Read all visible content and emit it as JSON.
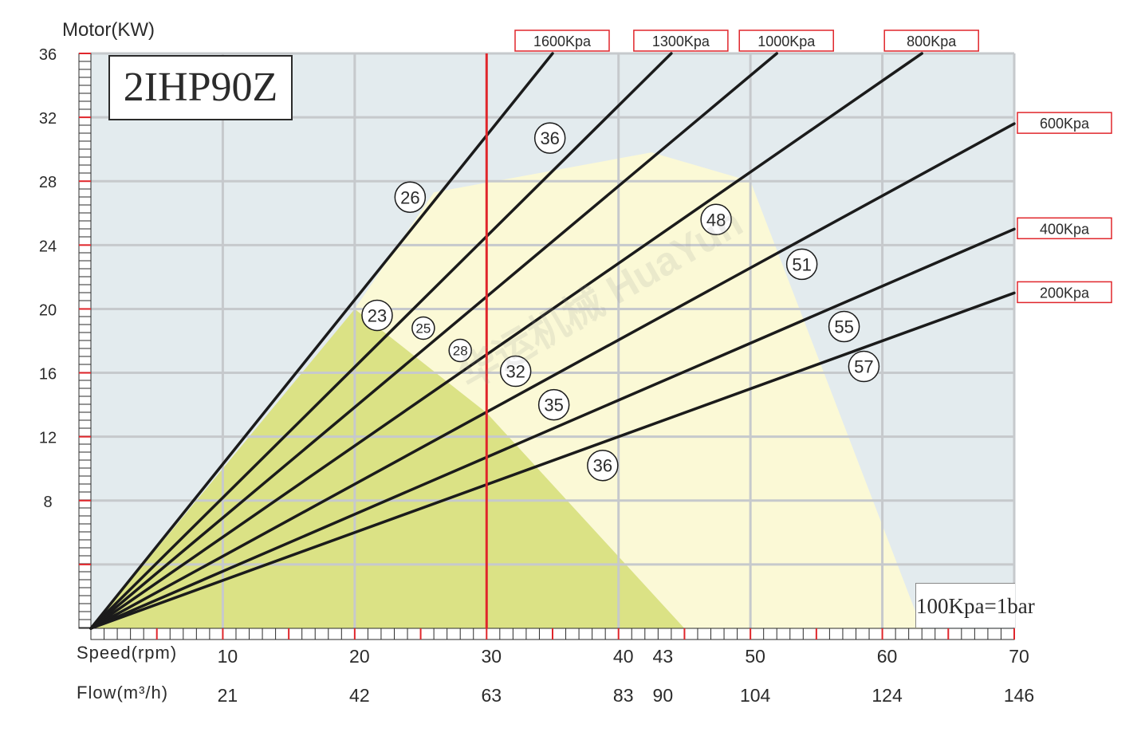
{
  "chart_data": {
    "type": "line",
    "title": "2IHP90Z",
    "ylabel": "Motor(KW)",
    "xlabel": "Speed(rpm)",
    "secondary_xlabel": "Flow(m³/h)",
    "xlim": [
      0,
      70
    ],
    "ylim": [
      0,
      36
    ],
    "grid": true,
    "y_ticks": [
      36,
      32,
      28,
      24,
      20,
      16,
      12,
      8
    ],
    "x_ticks": [
      {
        "speed": 10,
        "flow": "21"
      },
      {
        "speed": 20,
        "flow": "42"
      },
      {
        "speed": 30,
        "flow": "63"
      },
      {
        "speed": 40,
        "flow": "83"
      },
      {
        "speed": 43,
        "flow": "90"
      },
      {
        "speed": 50,
        "flow": "104"
      },
      {
        "speed": 60,
        "flow": "124"
      },
      {
        "speed": 70,
        "flow": "146"
      }
    ],
    "series": [
      {
        "name": "1600Kpa",
        "x": [
          0,
          35
        ],
        "y": [
          0,
          36
        ]
      },
      {
        "name": "1300Kpa",
        "x": [
          0,
          44
        ],
        "y": [
          0,
          36
        ]
      },
      {
        "name": "1000Kpa",
        "x": [
          0,
          52
        ],
        "y": [
          0,
          36
        ]
      },
      {
        "name": "800Kpa",
        "x": [
          0,
          63
        ],
        "y": [
          0,
          36
        ]
      },
      {
        "name": "600Kpa",
        "x": [
          0,
          70
        ],
        "y": [
          0,
          31.6
        ]
      },
      {
        "name": "400Kpa",
        "x": [
          0,
          70
        ],
        "y": [
          0,
          25
        ]
      },
      {
        "name": "200Kpa",
        "x": [
          0,
          70
        ],
        "y": [
          0,
          21
        ]
      }
    ],
    "reference_line": {
      "x": 30
    },
    "regions": [
      {
        "name": "green",
        "points": [
          [
            0,
            0
          ],
          [
            20,
            20
          ],
          [
            30,
            13.5
          ],
          [
            45,
            0
          ]
        ]
      },
      {
        "name": "yellow",
        "points": [
          [
            20,
            20
          ],
          [
            26,
            27.3
          ],
          [
            42.5,
            29.8
          ],
          [
            50,
            28
          ],
          [
            63,
            0
          ],
          [
            45,
            0
          ],
          [
            30,
            13.5
          ]
        ]
      }
    ],
    "annotations": [
      {
        "text": "26",
        "x": 24.2,
        "y": 27,
        "size": "large"
      },
      {
        "text": "36",
        "x": 34.8,
        "y": 30.7,
        "size": "large"
      },
      {
        "text": "48",
        "x": 47.4,
        "y": 25.6,
        "size": "large"
      },
      {
        "text": "51",
        "x": 53.9,
        "y": 22.8,
        "size": "large"
      },
      {
        "text": "55",
        "x": 57.1,
        "y": 18.9,
        "size": "large"
      },
      {
        "text": "57",
        "x": 58.6,
        "y": 16.4,
        "size": "large"
      },
      {
        "text": "23",
        "x": 21.7,
        "y": 19.6,
        "size": "large"
      },
      {
        "text": "25",
        "x": 25.2,
        "y": 18.8,
        "size": "small"
      },
      {
        "text": "28",
        "x": 28.0,
        "y": 17.4,
        "size": "small"
      },
      {
        "text": "32",
        "x": 32.2,
        "y": 16.1,
        "size": "large"
      },
      {
        "text": "35",
        "x": 35.1,
        "y": 14.0,
        "size": "large"
      },
      {
        "text": "36",
        "x": 38.8,
        "y": 10.2,
        "size": "large"
      }
    ],
    "note": "100Kpa=1bar"
  },
  "colors": {
    "background": "#e3ebee",
    "region_yellow": "#fbf9d6",
    "region_green": "#dbe285",
    "grid": "#c6c9cc",
    "pressure_line": "#1b1b1b",
    "reference_line": "#e0262b",
    "tick": "#e0262b",
    "label_border": "#e0262b",
    "text": "#2b2b2b"
  },
  "watermark": "华运机械 HuaYun"
}
